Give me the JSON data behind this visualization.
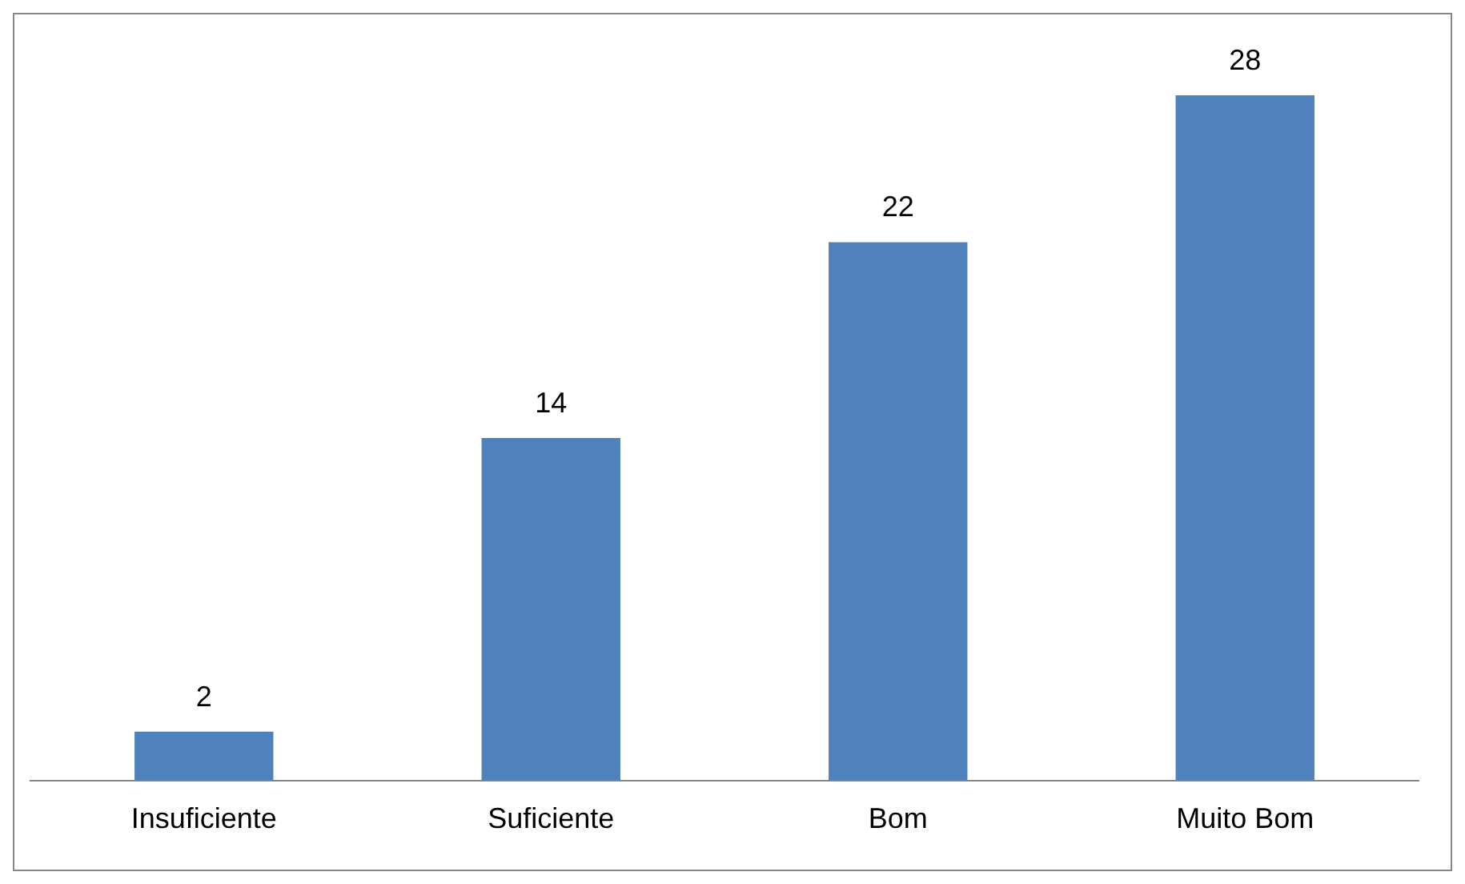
{
  "chart_data": {
    "type": "bar",
    "categories": [
      "Insuficiente",
      "Suficiente",
      "Bom",
      "Muito Bom"
    ],
    "values": [
      2,
      14,
      22,
      28
    ],
    "color": "#4f81bd",
    "data_labels": true
  }
}
